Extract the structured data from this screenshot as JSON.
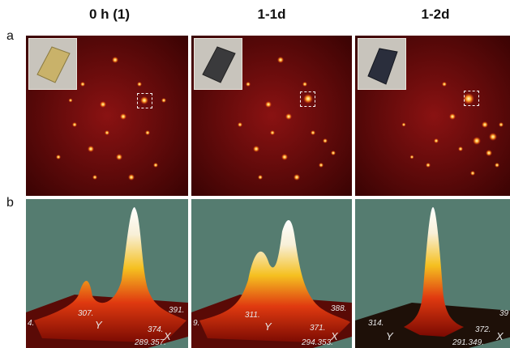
{
  "columns": [
    "0 h (1)",
    "1-1d",
    "1-2d"
  ],
  "row_labels": {
    "a": "a",
    "b": "b"
  },
  "axes": [
    {
      "left": "4.",
      "y_tick": "307.",
      "y_letter": "Y",
      "x_bottom": "289.357.",
      "x_right1": "391.",
      "x_right2": "374.",
      "x_letter": "X"
    },
    {
      "left": "9.",
      "y_tick": "311.",
      "y_letter": "Y",
      "x_bottom": "294.353.",
      "x_right1": "388.",
      "x_right2": "371.",
      "x_letter": "X"
    },
    {
      "left": "",
      "y_tick": "314.",
      "y_letter": "Y",
      "x_bottom": "291.349.",
      "x_right1": "39",
      "x_right2": "372.",
      "x_letter": "X"
    }
  ],
  "colors": {
    "diffraction_bg": "#4a0505",
    "surface_bg": "#557c70"
  }
}
